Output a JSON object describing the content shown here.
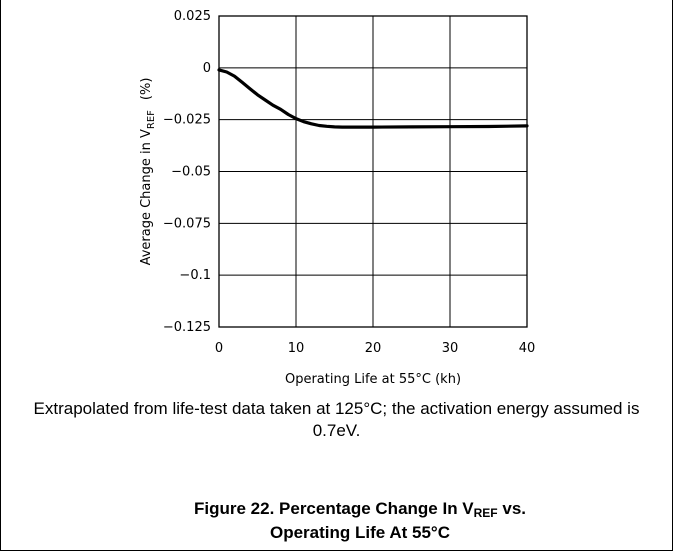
{
  "chart_data": {
    "type": "line",
    "xlabel": "Operating Life at 55°C (kh)",
    "ylabel": "Average Change in V",
    "ylabel_sub": "REF",
    "ylabel_unit": "(%)",
    "xlim": [
      0,
      40
    ],
    "ylim": [
      -0.125,
      0.025
    ],
    "x_ticks": [
      "0",
      "10",
      "20",
      "30",
      "40"
    ],
    "y_ticks": [
      "0.025",
      "0",
      "−0.025",
      "−0.05",
      "−0.075",
      "−0.1",
      "−0.125"
    ],
    "x_tick_values": [
      0,
      10,
      20,
      30,
      40
    ],
    "y_tick_values": [
      0.025,
      0,
      -0.025,
      -0.05,
      -0.075,
      -0.1,
      -0.125
    ],
    "grid": true,
    "series": [
      {
        "x": [
          0,
          1,
          2,
          3,
          4,
          5,
          6,
          7,
          8,
          9,
          10,
          11,
          12,
          13,
          14,
          15,
          16,
          18,
          20,
          25,
          30,
          35,
          40
        ],
        "values": [
          -0.001,
          -0.002,
          -0.004,
          -0.007,
          -0.01,
          -0.013,
          -0.0155,
          -0.018,
          -0.02,
          -0.0225,
          -0.0245,
          -0.026,
          -0.027,
          -0.0278,
          -0.0282,
          -0.0285,
          -0.0286,
          -0.0286,
          -0.0286,
          -0.0285,
          -0.0284,
          -0.0283,
          -0.028
        ]
      }
    ]
  },
  "note": "Extrapolated from life-test data taken at 125°C; the activation energy assumed is 0.7eV.",
  "caption": {
    "prefix": "Figure 22. Percentage Change In V",
    "sub": "REF",
    "suffix": " vs.",
    "line2": "Operating Life At 55°C"
  }
}
